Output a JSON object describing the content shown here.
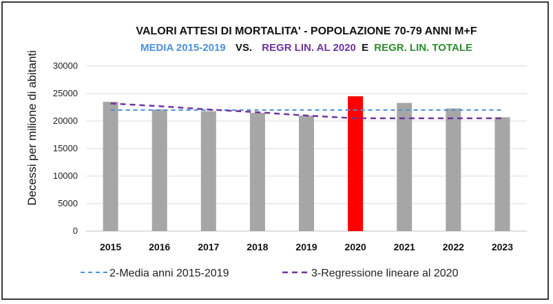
{
  "chart_data": {
    "type": "bar",
    "title": "VALORI ATTESI DI MORTALITA' - POPOLAZIONE 70-79 ANNI M+F",
    "subtitle_parts": [
      {
        "text": "MEDIA 2015-2019",
        "color": "#4a90d9"
      },
      {
        "text": "VS.",
        "color": "#111111"
      },
      {
        "text": "REGR LIN. AL 2020",
        "color": "#7030a0"
      },
      {
        "text": "E",
        "color": "#111111"
      },
      {
        "text": "REGR. LIN. TOTALE",
        "color": "#2e8b2e"
      }
    ],
    "ylabel": "Decessi per milione di abitanti",
    "ylim": [
      0,
      30000
    ],
    "yticks": [
      "0",
      "5000",
      "10000",
      "15000",
      "20000",
      "25000",
      "30000"
    ],
    "categories": [
      "2015",
      "2016",
      "2017",
      "2018",
      "2019",
      "2020",
      "2021",
      "2022",
      "2023"
    ],
    "values": [
      23500,
      22100,
      21800,
      21500,
      21000,
      24500,
      23300,
      22300,
      20700
    ],
    "bar_colors": [
      "#a6a6a6",
      "#a6a6a6",
      "#a6a6a6",
      "#a6a6a6",
      "#a6a6a6",
      "#ff0000",
      "#a6a6a6",
      "#a6a6a6",
      "#a6a6a6"
    ],
    "grid": true,
    "legend_position": "bottom",
    "series": [
      {
        "name": "2-Media anni 2015-2019",
        "color": "#4a90d9",
        "style": "dashed",
        "values": [
          22000,
          22000,
          22000,
          22000,
          22000,
          22000,
          22000,
          22000,
          22000
        ]
      },
      {
        "name": "3-Regressione lineare al 2020",
        "color": "#7030a0",
        "style": "dashed",
        "values": [
          23200,
          22700,
          22100,
          21600,
          21000,
          20500,
          20500,
          20500,
          20500
        ]
      }
    ]
  }
}
